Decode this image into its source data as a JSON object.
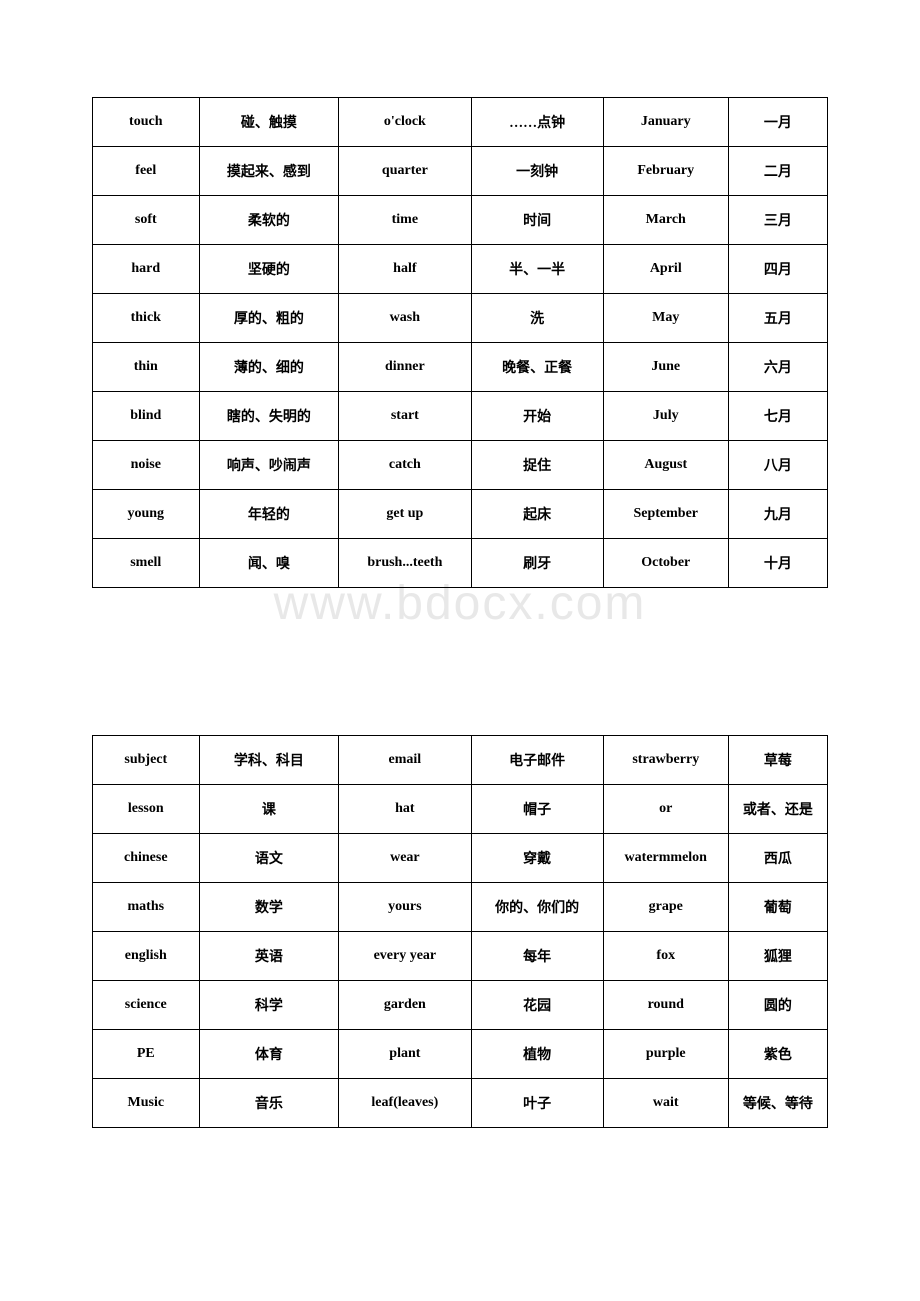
{
  "watermark": "www.bdocx.com",
  "table1": {
    "rows": [
      [
        "touch",
        "碰、触摸",
        "o'clock",
        "……点钟",
        "January",
        "一月"
      ],
      [
        "feel",
        "摸起来、感到",
        "quarter",
        "一刻钟",
        "February",
        "二月"
      ],
      [
        "soft",
        "柔软的",
        "time",
        "时间",
        "March",
        "三月"
      ],
      [
        "hard",
        "坚硬的",
        "half",
        "半、一半",
        "April",
        "四月"
      ],
      [
        "thick",
        "厚的、粗的",
        "wash",
        "洗",
        "May",
        "五月"
      ],
      [
        "thin",
        "薄的、细的",
        "dinner",
        "晚餐、正餐",
        "June",
        "六月"
      ],
      [
        "blind",
        "瞎的、失明的",
        "start",
        "开始",
        "July",
        "七月"
      ],
      [
        "noise",
        "响声、吵闹声",
        "catch",
        "捉住",
        "August",
        "八月"
      ],
      [
        "young",
        "年轻的",
        "get up",
        "起床",
        "September",
        "九月"
      ],
      [
        "smell",
        "闻、嗅",
        "brush...teeth",
        "刷牙",
        "October",
        "十月"
      ]
    ]
  },
  "table2": {
    "rows": [
      [
        "subject",
        "学科、科目",
        "email",
        "电子邮件",
        "strawberry",
        "草莓"
      ],
      [
        "lesson",
        "课",
        "hat",
        "帽子",
        "or",
        "或者、还是"
      ],
      [
        "chinese",
        "语文",
        "wear",
        "穿戴",
        "watermmelon",
        "西瓜"
      ],
      [
        "maths",
        "数学",
        "yours",
        "你的、你们的",
        "grape",
        "葡萄"
      ],
      [
        "english",
        "英语",
        "every year",
        "每年",
        "fox",
        "狐狸"
      ],
      [
        "science",
        "科学",
        "garden",
        "花园",
        "round",
        "圆的"
      ],
      [
        "PE",
        "体育",
        "plant",
        "植物",
        "purple",
        "紫色"
      ],
      [
        "Music",
        "音乐",
        "leaf(leaves)",
        "叶子",
        "wait",
        "等候、等待"
      ]
    ]
  }
}
